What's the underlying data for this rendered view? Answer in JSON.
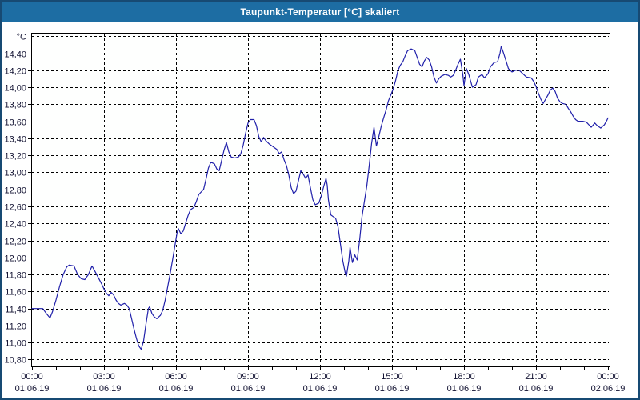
{
  "window": {
    "title": "Taupunkt-Temperatur [°C] skaliert"
  },
  "colors": {
    "titlebar_bg": "#1d6da3",
    "titlebar_text": "#ffffff",
    "window_border": "#174a73",
    "plot_bg": "#fefffe",
    "grid": "#000000",
    "frame": "#000000",
    "line": "#2020aa",
    "label_text": "#101030"
  },
  "chart_data": {
    "type": "line",
    "title": "Taupunkt-Temperatur [°C] skaliert",
    "xlabel": "",
    "ylabel": "°C",
    "grid": "dashed",
    "legend": "none",
    "xlim": [
      0,
      24
    ],
    "ylim": [
      10.72,
      14.64
    ],
    "ytick_step": 0.2,
    "xtick_minor_every_hours": 1,
    "yticks": [
      {
        "v": 14.4,
        "label": "14,40"
      },
      {
        "v": 14.2,
        "label": "14,20"
      },
      {
        "v": 14.0,
        "label": "14,00"
      },
      {
        "v": 13.8,
        "label": "13,80"
      },
      {
        "v": 13.6,
        "label": "13,60"
      },
      {
        "v": 13.4,
        "label": "13,40"
      },
      {
        "v": 13.2,
        "label": "13,20"
      },
      {
        "v": 13.0,
        "label": "13,00"
      },
      {
        "v": 12.8,
        "label": "12,80"
      },
      {
        "v": 12.6,
        "label": "12,60"
      },
      {
        "v": 12.4,
        "label": "12,40"
      },
      {
        "v": 12.2,
        "label": "12,20"
      },
      {
        "v": 12.0,
        "label": "12,00"
      },
      {
        "v": 11.8,
        "label": "11,80"
      },
      {
        "v": 11.6,
        "label": "11,60"
      },
      {
        "v": 11.4,
        "label": "11,40"
      },
      {
        "v": 11.2,
        "label": "11,20"
      },
      {
        "v": 11.0,
        "label": "11,00"
      },
      {
        "v": 10.8,
        "label": "10,80"
      }
    ],
    "xticks": [
      {
        "hour": 0,
        "time": "00:00",
        "date": "01.06.19"
      },
      {
        "hour": 3,
        "time": "03:00",
        "date": "01.06.19"
      },
      {
        "hour": 6,
        "time": "06:00",
        "date": "01.06.19"
      },
      {
        "hour": 9,
        "time": "09:00",
        "date": "01.06.19"
      },
      {
        "hour": 12,
        "time": "12:00",
        "date": "01.06.19"
      },
      {
        "hour": 15,
        "time": "15:00",
        "date": "01.06.19"
      },
      {
        "hour": 18,
        "time": "18:00",
        "date": "01.06.19"
      },
      {
        "hour": 21,
        "time": "21:00",
        "date": "01.06.19"
      },
      {
        "hour": 24,
        "time": "00:00",
        "date": "02.06.19"
      }
    ],
    "points": [
      [
        0,
        11.4
      ],
      [
        0.45,
        11.4
      ],
      [
        0.6,
        11.34
      ],
      [
        0.75,
        11.29
      ],
      [
        0.85,
        11.36
      ],
      [
        1,
        11.5
      ],
      [
        1.15,
        11.66
      ],
      [
        1.3,
        11.8
      ],
      [
        1.45,
        11.89
      ],
      [
        1.55,
        11.91
      ],
      [
        1.75,
        11.9
      ],
      [
        1.9,
        11.8
      ],
      [
        2.05,
        11.75
      ],
      [
        2.2,
        11.74
      ],
      [
        2.35,
        11.8
      ],
      [
        2.5,
        11.9
      ],
      [
        2.6,
        11.85
      ],
      [
        2.75,
        11.77
      ],
      [
        2.9,
        11.69
      ],
      [
        3,
        11.63
      ],
      [
        3.1,
        11.58
      ],
      [
        3.2,
        11.55
      ],
      [
        3.3,
        11.59
      ],
      [
        3.4,
        11.56
      ],
      [
        3.5,
        11.5
      ],
      [
        3.6,
        11.46
      ],
      [
        3.7,
        11.44
      ],
      [
        3.85,
        11.46
      ],
      [
        3.95,
        11.44
      ],
      [
        4.05,
        11.4
      ],
      [
        4.15,
        11.28
      ],
      [
        4.25,
        11.16
      ],
      [
        4.35,
        11.05
      ],
      [
        4.45,
        10.96
      ],
      [
        4.55,
        10.92
      ],
      [
        4.65,
        11.02
      ],
      [
        4.75,
        11.22
      ],
      [
        4.85,
        11.4
      ],
      [
        4.9,
        11.42
      ],
      [
        5,
        11.34
      ],
      [
        5.1,
        11.3
      ],
      [
        5.2,
        11.28
      ],
      [
        5.35,
        11.32
      ],
      [
        5.45,
        11.38
      ],
      [
        5.55,
        11.5
      ],
      [
        5.65,
        11.65
      ],
      [
        5.75,
        11.8
      ],
      [
        5.85,
        11.96
      ],
      [
        5.95,
        12.13
      ],
      [
        6.05,
        12.3
      ],
      [
        6.1,
        12.34
      ],
      [
        6.2,
        12.28
      ],
      [
        6.3,
        12.31
      ],
      [
        6.4,
        12.4
      ],
      [
        6.5,
        12.49
      ],
      [
        6.6,
        12.56
      ],
      [
        6.75,
        12.59
      ],
      [
        6.85,
        12.66
      ],
      [
        6.95,
        12.74
      ],
      [
        7.05,
        12.77
      ],
      [
        7.15,
        12.8
      ],
      [
        7.25,
        12.92
      ],
      [
        7.35,
        13.05
      ],
      [
        7.45,
        13.12
      ],
      [
        7.6,
        13.1
      ],
      [
        7.7,
        13.04
      ],
      [
        7.8,
        13.02
      ],
      [
        7.9,
        13.14
      ],
      [
        8,
        13.26
      ],
      [
        8.1,
        13.35
      ],
      [
        8.2,
        13.24
      ],
      [
        8.3,
        13.18
      ],
      [
        8.45,
        13.17
      ],
      [
        8.6,
        13.18
      ],
      [
        8.7,
        13.22
      ],
      [
        8.8,
        13.32
      ],
      [
        8.9,
        13.46
      ],
      [
        9,
        13.58
      ],
      [
        9.1,
        13.62
      ],
      [
        9.25,
        13.62
      ],
      [
        9.35,
        13.55
      ],
      [
        9.45,
        13.42
      ],
      [
        9.55,
        13.36
      ],
      [
        9.65,
        13.41
      ],
      [
        9.75,
        13.37
      ],
      [
        9.9,
        13.33
      ],
      [
        10.05,
        13.3
      ],
      [
        10.2,
        13.27
      ],
      [
        10.3,
        13.22
      ],
      [
        10.4,
        13.24
      ],
      [
        10.5,
        13.15
      ],
      [
        10.6,
        13.08
      ],
      [
        10.7,
        12.97
      ],
      [
        10.8,
        12.82
      ],
      [
        10.9,
        12.75
      ],
      [
        11,
        12.78
      ],
      [
        11.1,
        12.9
      ],
      [
        11.2,
        13.02
      ],
      [
        11.3,
        12.98
      ],
      [
        11.4,
        12.93
      ],
      [
        11.5,
        12.97
      ],
      [
        11.6,
        12.82
      ],
      [
        11.7,
        12.68
      ],
      [
        11.8,
        12.62
      ],
      [
        11.95,
        12.64
      ],
      [
        12.05,
        12.72
      ],
      [
        12.15,
        12.83
      ],
      [
        12.25,
        12.93
      ],
      [
        12.3,
        12.85
      ],
      [
        12.35,
        12.68
      ],
      [
        12.45,
        12.5
      ],
      [
        12.55,
        12.48
      ],
      [
        12.65,
        12.46
      ],
      [
        12.75,
        12.36
      ],
      [
        12.85,
        12.16
      ],
      [
        12.95,
        11.96
      ],
      [
        13.05,
        11.82
      ],
      [
        13.1,
        11.78
      ],
      [
        13.2,
        11.96
      ],
      [
        13.25,
        12.12
      ],
      [
        13.35,
        11.94
      ],
      [
        13.45,
        12.03
      ],
      [
        13.55,
        11.97
      ],
      [
        13.65,
        12.2
      ],
      [
        13.75,
        12.48
      ],
      [
        13.85,
        12.66
      ],
      [
        13.95,
        12.84
      ],
      [
        14.05,
        13.08
      ],
      [
        14.15,
        13.34
      ],
      [
        14.25,
        13.53
      ],
      [
        14.35,
        13.31
      ],
      [
        14.45,
        13.42
      ],
      [
        14.55,
        13.54
      ],
      [
        14.65,
        13.64
      ],
      [
        14.75,
        13.73
      ],
      [
        14.85,
        13.84
      ],
      [
        14.95,
        13.91
      ],
      [
        15.05,
        13.98
      ],
      [
        15.15,
        14.08
      ],
      [
        15.25,
        14.2
      ],
      [
        15.35,
        14.26
      ],
      [
        15.45,
        14.3
      ],
      [
        15.55,
        14.37
      ],
      [
        15.65,
        14.43
      ],
      [
        15.8,
        14.45
      ],
      [
        15.95,
        14.43
      ],
      [
        16.05,
        14.35
      ],
      [
        16.15,
        14.27
      ],
      [
        16.25,
        14.24
      ],
      [
        16.35,
        14.31
      ],
      [
        16.45,
        14.35
      ],
      [
        16.55,
        14.32
      ],
      [
        16.65,
        14.24
      ],
      [
        16.75,
        14.12
      ],
      [
        16.85,
        14.05
      ],
      [
        16.95,
        14.1
      ],
      [
        17.05,
        14.13
      ],
      [
        17.2,
        14.15
      ],
      [
        17.35,
        14.14
      ],
      [
        17.45,
        14.12
      ],
      [
        17.55,
        14.14
      ],
      [
        17.65,
        14.2
      ],
      [
        17.75,
        14.27
      ],
      [
        17.85,
        14.33
      ],
      [
        17.95,
        14.15
      ],
      [
        18,
        14.02
      ],
      [
        18.1,
        14.22
      ],
      [
        18.2,
        14.15
      ],
      [
        18.35,
        14
      ],
      [
        18.5,
        14.03
      ],
      [
        18.6,
        14.12
      ],
      [
        18.75,
        14.15
      ],
      [
        18.85,
        14.11
      ],
      [
        19,
        14.16
      ],
      [
        19.1,
        14.24
      ],
      [
        19.25,
        14.29
      ],
      [
        19.4,
        14.3
      ],
      [
        19.5,
        14.4
      ],
      [
        19.55,
        14.48
      ],
      [
        19.65,
        14.4
      ],
      [
        19.75,
        14.31
      ],
      [
        19.85,
        14.22
      ],
      [
        20,
        14.18
      ],
      [
        20.15,
        14.2
      ],
      [
        20.3,
        14.2
      ],
      [
        20.45,
        14.16
      ],
      [
        20.6,
        14.12
      ],
      [
        20.8,
        14.11
      ],
      [
        20.9,
        14.07
      ],
      [
        21,
        14.01
      ],
      [
        21.1,
        13.93
      ],
      [
        21.2,
        13.86
      ],
      [
        21.3,
        13.81
      ],
      [
        21.4,
        13.86
      ],
      [
        21.5,
        13.91
      ],
      [
        21.6,
        13.97
      ],
      [
        21.7,
        13.99
      ],
      [
        21.8,
        13.95
      ],
      [
        21.9,
        13.87
      ],
      [
        22,
        13.83
      ],
      [
        22.1,
        13.81
      ],
      [
        22.25,
        13.8
      ],
      [
        22.35,
        13.75
      ],
      [
        22.45,
        13.71
      ],
      [
        22.55,
        13.66
      ],
      [
        22.65,
        13.62
      ],
      [
        22.75,
        13.6
      ],
      [
        22.95,
        13.6
      ],
      [
        23.1,
        13.59
      ],
      [
        23.2,
        13.56
      ],
      [
        23.3,
        13.53
      ],
      [
        23.45,
        13.58
      ],
      [
        23.55,
        13.55
      ],
      [
        23.7,
        13.52
      ],
      [
        23.85,
        13.56
      ],
      [
        23.95,
        13.61
      ],
      [
        24,
        13.64
      ]
    ]
  }
}
